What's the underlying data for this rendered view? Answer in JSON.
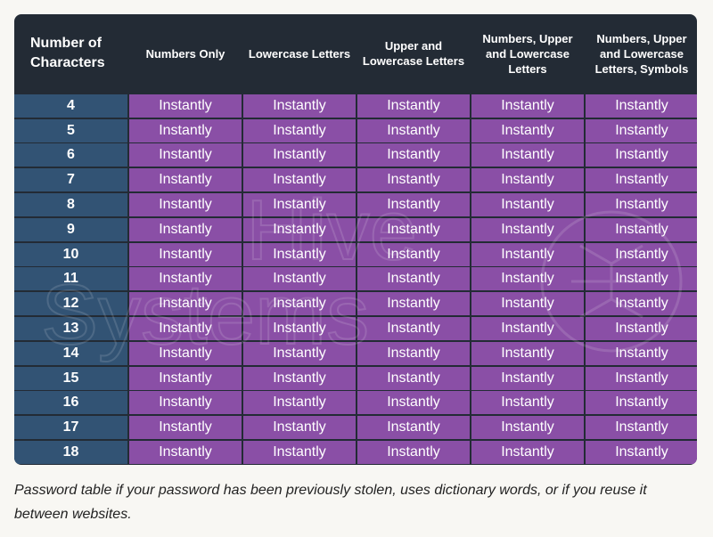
{
  "chart_data": {
    "type": "table",
    "title": "",
    "columns": [
      "Number of Characters",
      "Numbers Only",
      "Lowercase Letters",
      "Upper and Lowercase Letters",
      "Numbers, Upper and Lowercase Letters",
      "Numbers, Upper and Lowercase Letters, Symbols"
    ],
    "rows": [
      {
        "chars": "4",
        "values": [
          "Instantly",
          "Instantly",
          "Instantly",
          "Instantly",
          "Instantly"
        ]
      },
      {
        "chars": "5",
        "values": [
          "Instantly",
          "Instantly",
          "Instantly",
          "Instantly",
          "Instantly"
        ]
      },
      {
        "chars": "6",
        "values": [
          "Instantly",
          "Instantly",
          "Instantly",
          "Instantly",
          "Instantly"
        ]
      },
      {
        "chars": "7",
        "values": [
          "Instantly",
          "Instantly",
          "Instantly",
          "Instantly",
          "Instantly"
        ]
      },
      {
        "chars": "8",
        "values": [
          "Instantly",
          "Instantly",
          "Instantly",
          "Instantly",
          "Instantly"
        ]
      },
      {
        "chars": "9",
        "values": [
          "Instantly",
          "Instantly",
          "Instantly",
          "Instantly",
          "Instantly"
        ]
      },
      {
        "chars": "10",
        "values": [
          "Instantly",
          "Instantly",
          "Instantly",
          "Instantly",
          "Instantly"
        ]
      },
      {
        "chars": "11",
        "values": [
          "Instantly",
          "Instantly",
          "Instantly",
          "Instantly",
          "Instantly"
        ]
      },
      {
        "chars": "12",
        "values": [
          "Instantly",
          "Instantly",
          "Instantly",
          "Instantly",
          "Instantly"
        ]
      },
      {
        "chars": "13",
        "values": [
          "Instantly",
          "Instantly",
          "Instantly",
          "Instantly",
          "Instantly"
        ]
      },
      {
        "chars": "14",
        "values": [
          "Instantly",
          "Instantly",
          "Instantly",
          "Instantly",
          "Instantly"
        ]
      },
      {
        "chars": "15",
        "values": [
          "Instantly",
          "Instantly",
          "Instantly",
          "Instantly",
          "Instantly"
        ]
      },
      {
        "chars": "16",
        "values": [
          "Instantly",
          "Instantly",
          "Instantly",
          "Instantly",
          "Instantly"
        ]
      },
      {
        "chars": "17",
        "values": [
          "Instantly",
          "Instantly",
          "Instantly",
          "Instantly",
          "Instantly"
        ]
      },
      {
        "chars": "18",
        "values": [
          "Instantly",
          "Instantly",
          "Instantly",
          "Instantly",
          "Instantly"
        ]
      }
    ]
  },
  "watermark": {
    "line1": "Hive",
    "line2": "Systems"
  },
  "caption": "Password table if your password has been previously stolen, uses dictionary words, or if you reuse it between websites.",
  "colors": {
    "header_bg": "#232b35",
    "row_label_bg": "#325374",
    "cell_bg": "#8a4fa6",
    "page_bg": "#f8f7f3"
  }
}
